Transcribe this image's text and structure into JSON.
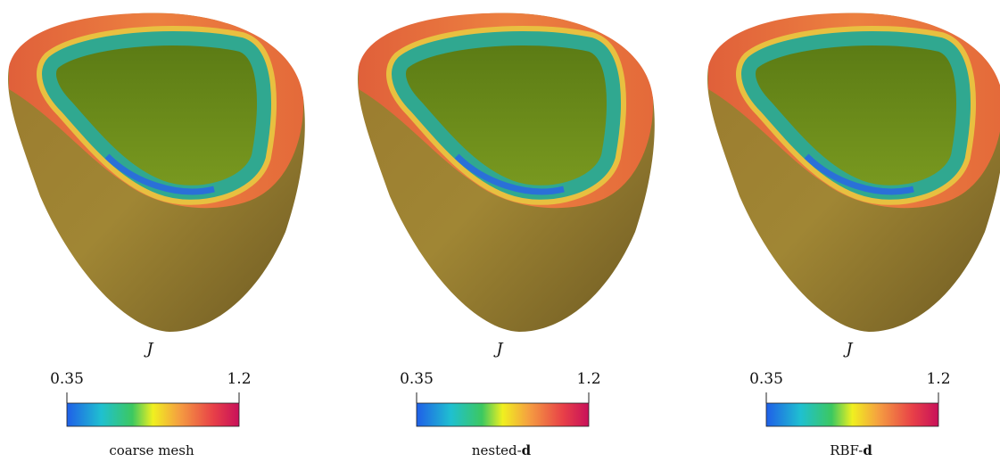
{
  "variable": "J",
  "colorbar": {
    "min": 0.35,
    "max": 1.2
  },
  "panels": [
    {
      "caption": "coarse mesh",
      "caption_bold": null
    },
    {
      "caption": "nested-",
      "caption_bold": "d"
    },
    {
      "caption": "RBF-",
      "caption_bold": "d"
    }
  ]
}
